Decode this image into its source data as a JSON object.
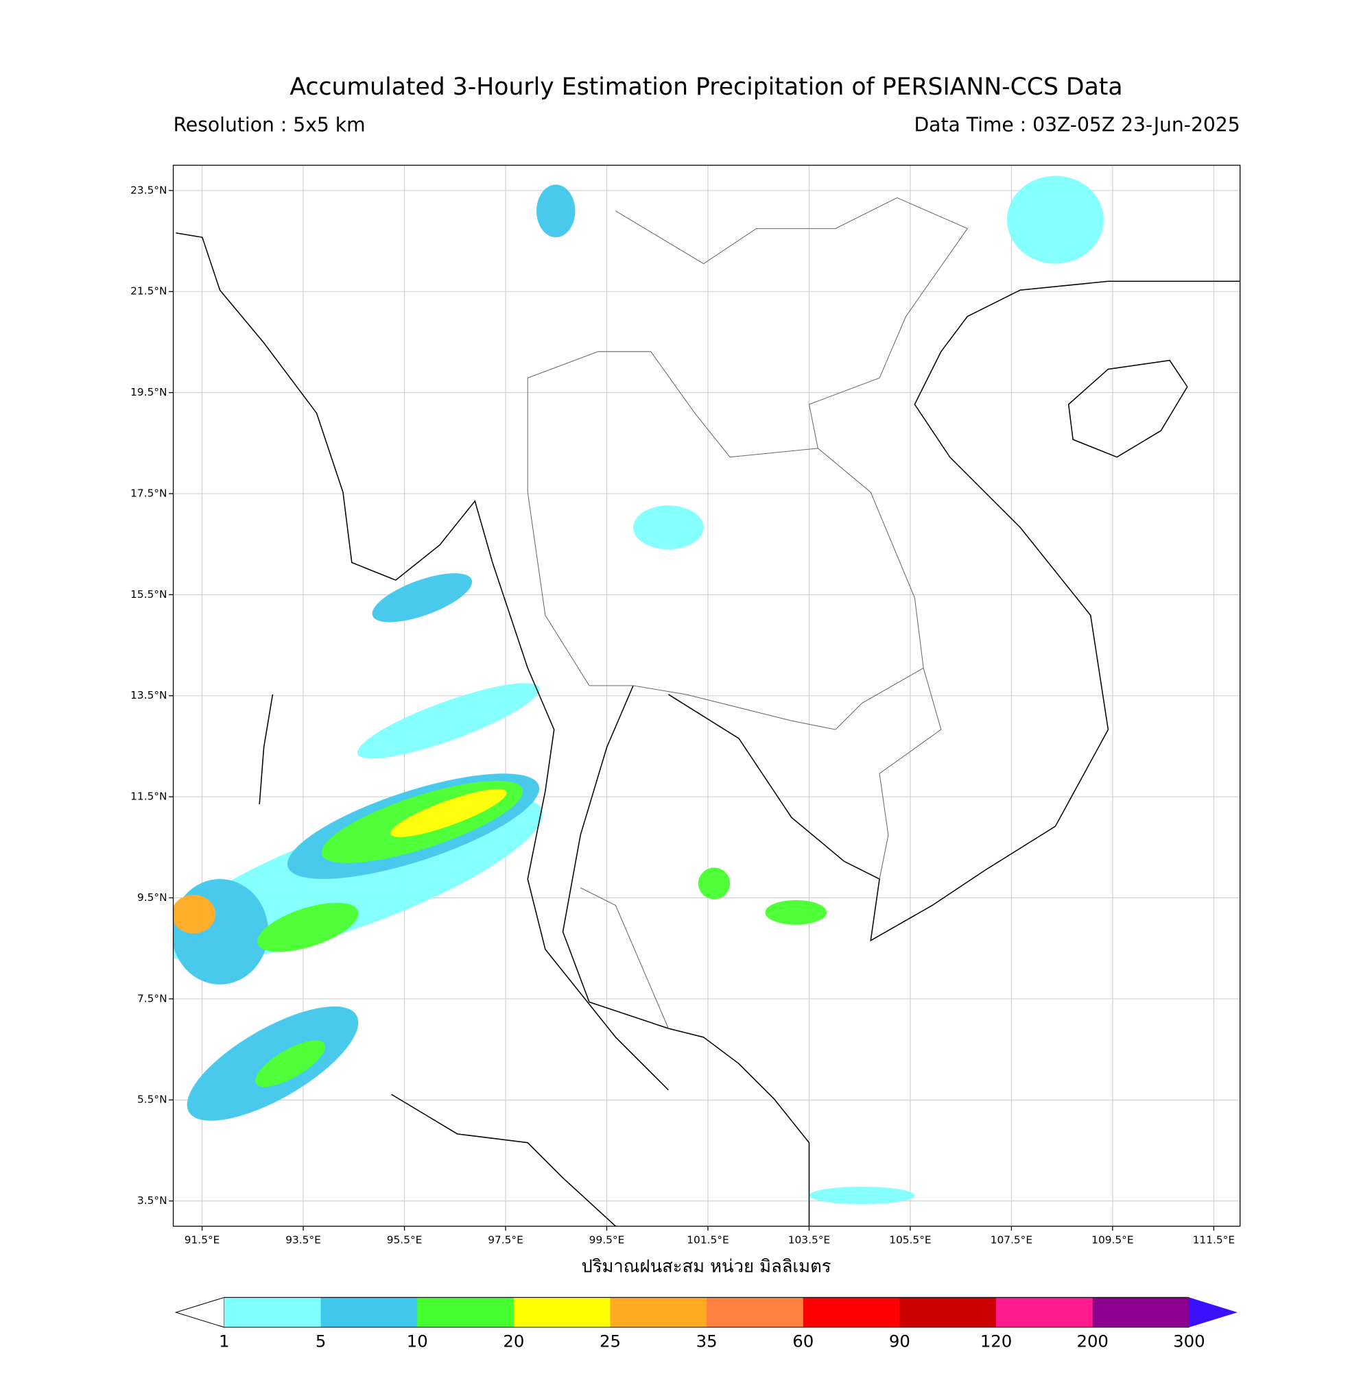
{
  "map": {
    "title": "Accumulated 3-Hourly Estimation Precipitation of PERSIANN-CCS Data",
    "resolution": "Resolution : 5x5 km",
    "data_time": "Data Time : 03Z-05Z 23-Jun-2025",
    "xlabel": "ปริมาณฝนสะสม หน่วย มิลลิเมตร",
    "xlim": [
      90.93,
      112.02
    ],
    "ylim": [
      3.0,
      24.0
    ],
    "xticks": [
      {
        "value": 91.5,
        "label": "91.5°E"
      },
      {
        "value": 93.5,
        "label": "93.5°E"
      },
      {
        "value": 95.5,
        "label": "95.5°E"
      },
      {
        "value": 97.5,
        "label": "97.5°E"
      },
      {
        "value": 99.5,
        "label": "99.5°E"
      },
      {
        "value": 101.5,
        "label": "101.5°E"
      },
      {
        "value": 103.5,
        "label": "103.5°E"
      },
      {
        "value": 105.5,
        "label": "105.5°E"
      },
      {
        "value": 107.5,
        "label": "107.5°E"
      },
      {
        "value": 109.5,
        "label": "109.5°E"
      },
      {
        "value": 111.5,
        "label": "111.5°E"
      }
    ],
    "yticks": [
      {
        "value": 3.5,
        "label": "3.5°N"
      },
      {
        "value": 5.5,
        "label": "5.5°N"
      },
      {
        "value": 7.5,
        "label": "7.5°N"
      },
      {
        "value": 9.5,
        "label": "9.5°N"
      },
      {
        "value": 11.5,
        "label": "11.5°N"
      },
      {
        "value": 13.5,
        "label": "13.5°N"
      },
      {
        "value": 15.5,
        "label": "15.5°N"
      },
      {
        "value": 17.5,
        "label": "17.5°N"
      },
      {
        "value": 19.5,
        "label": "19.5°N"
      },
      {
        "value": 21.5,
        "label": "21.5°N"
      },
      {
        "value": 23.5,
        "label": "23.5°N"
      }
    ],
    "grid": true
  },
  "colorbar": {
    "bounds": [
      1,
      5,
      10,
      20,
      25,
      35,
      60,
      90,
      120,
      200,
      300
    ],
    "colors": [
      "#80ffff",
      "#40c8ec",
      "#46ff2e",
      "#ffff00",
      "#ffaa20",
      "#ff8040",
      "#ff0000",
      "#cc0000",
      "#ff1a90",
      "#8c0090"
    ],
    "under_color": "#ffffff",
    "over_color": "#3a10ff"
  }
}
